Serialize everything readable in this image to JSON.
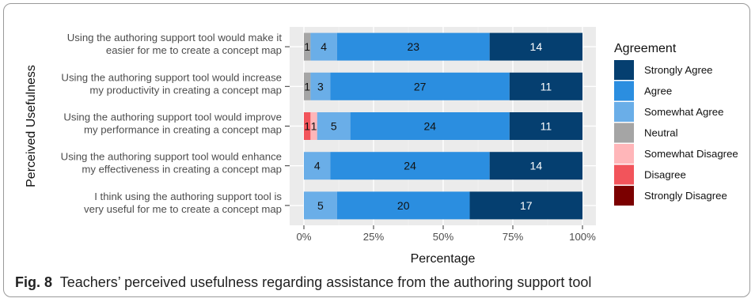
{
  "caption": {
    "label": "Fig. 8",
    "text": "Teachers’ perceived usefulness regarding assistance from the authoring support tool"
  },
  "chart_data": {
    "type": "bar",
    "orientation": "horizontal",
    "stacked": true,
    "normalized_percent": true,
    "xlabel": "Percentage",
    "ylabel": "Perceived Usefulness",
    "xlim": [
      0,
      100
    ],
    "x_ticks": [
      "0%",
      "25%",
      "50%",
      "75%",
      "100%"
    ],
    "grid": true,
    "legend": {
      "title": "Agreement",
      "position": "right"
    },
    "categories": [
      [
        "Using the authoring support tool would make it",
        "easier for me to create a concept map"
      ],
      [
        "Using the authoring support tool would increase",
        "my productivity in creating a concept map"
      ],
      [
        "Using the authoring support tool would improve",
        "my performance in creating a concept map"
      ],
      [
        "Using the authoring support tool would enhance",
        "my effectiveness in creating a concept map"
      ],
      [
        "I think using the authoring support tool is",
        "very useful for me to create a concept map"
      ]
    ],
    "series": [
      {
        "name": "Strongly Disagree",
        "color": "#7b0000",
        "values": [
          0,
          0,
          0,
          0,
          0
        ]
      },
      {
        "name": "Disagree",
        "color": "#f2545b",
        "values": [
          0,
          0,
          1,
          0,
          0
        ]
      },
      {
        "name": "Somewhat Disagree",
        "color": "#ffb6b9",
        "values": [
          0,
          0,
          1,
          0,
          0
        ]
      },
      {
        "name": "Neutral",
        "color": "#a5a5a5",
        "values": [
          1,
          1,
          0,
          0,
          0
        ]
      },
      {
        "name": "Somewhat Agree",
        "color": "#6aaee8",
        "values": [
          4,
          3,
          5,
          4,
          5
        ]
      },
      {
        "name": "Agree",
        "color": "#2b8ee0",
        "values": [
          23,
          27,
          24,
          24,
          20
        ]
      },
      {
        "name": "Strongly Agree",
        "color": "#053f70",
        "values": [
          14,
          11,
          11,
          14,
          17
        ]
      }
    ],
    "label_colors": {
      "Strongly Agree": "#ffffff"
    }
  }
}
